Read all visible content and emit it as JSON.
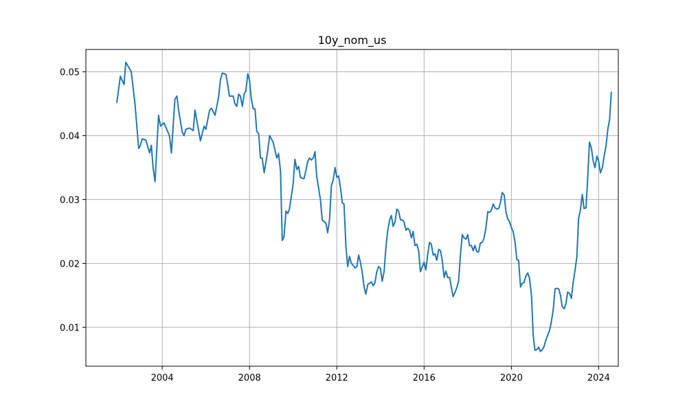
{
  "chart_data": {
    "type": "line",
    "title": "10y_nom_us",
    "xlabel": "",
    "ylabel": "",
    "grid": true,
    "xlim": [
      2000.5,
      2024.9
    ],
    "ylim": [
      0.0039,
      0.0535
    ],
    "x_ticks": [
      2004,
      2008,
      2012,
      2016,
      2020,
      2024
    ],
    "x_tick_labels": [
      "2004",
      "2008",
      "2012",
      "2016",
      "2020",
      "2024"
    ],
    "y_ticks": [
      0.01,
      0.02,
      0.03,
      0.04,
      0.05
    ],
    "y_tick_labels": [
      "0.01",
      "0.02",
      "0.03",
      "0.04",
      "0.05"
    ],
    "series": [
      {
        "color": "#1f77b4",
        "points": [
          [
            2001.92,
            0.0452
          ],
          [
            2002.08,
            0.0493
          ],
          [
            2002.25,
            0.048
          ],
          [
            2002.33,
            0.0515
          ],
          [
            2002.58,
            0.05
          ],
          [
            2002.75,
            0.045
          ],
          [
            2002.92,
            0.038
          ],
          [
            2003.0,
            0.0385
          ],
          [
            2003.08,
            0.0395
          ],
          [
            2003.25,
            0.0393
          ],
          [
            2003.42,
            0.0373
          ],
          [
            2003.5,
            0.0385
          ],
          [
            2003.58,
            0.035
          ],
          [
            2003.67,
            0.0328
          ],
          [
            2003.75,
            0.038
          ],
          [
            2003.83,
            0.0432
          ],
          [
            2003.92,
            0.0415
          ],
          [
            2004.08,
            0.042
          ],
          [
            2004.33,
            0.04
          ],
          [
            2004.42,
            0.0373
          ],
          [
            2004.58,
            0.0457
          ],
          [
            2004.67,
            0.0462
          ],
          [
            2004.75,
            0.044
          ],
          [
            2004.92,
            0.0405
          ],
          [
            2005.0,
            0.04
          ],
          [
            2005.08,
            0.041
          ],
          [
            2005.25,
            0.0412
          ],
          [
            2005.42,
            0.0408
          ],
          [
            2005.5,
            0.044
          ],
          [
            2005.75,
            0.0392
          ],
          [
            2005.92,
            0.0415
          ],
          [
            2006.0,
            0.041
          ],
          [
            2006.17,
            0.044
          ],
          [
            2006.25,
            0.0443
          ],
          [
            2006.42,
            0.0432
          ],
          [
            2006.58,
            0.046
          ],
          [
            2006.67,
            0.0488
          ],
          [
            2006.75,
            0.0498
          ],
          [
            2006.92,
            0.0496
          ],
          [
            2007.0,
            0.048
          ],
          [
            2007.08,
            0.0462
          ],
          [
            2007.25,
            0.0462
          ],
          [
            2007.33,
            0.045
          ],
          [
            2007.42,
            0.0446
          ],
          [
            2007.5,
            0.0465
          ],
          [
            2007.58,
            0.0462
          ],
          [
            2007.67,
            0.0446
          ],
          [
            2007.75,
            0.0465
          ],
          [
            2007.83,
            0.047
          ],
          [
            2007.92,
            0.0497
          ],
          [
            2008.0,
            0.0487
          ],
          [
            2008.08,
            0.0458
          ],
          [
            2008.17,
            0.0442
          ],
          [
            2008.25,
            0.0442
          ],
          [
            2008.33,
            0.0407
          ],
          [
            2008.42,
            0.0403
          ],
          [
            2008.5,
            0.0365
          ],
          [
            2008.58,
            0.0365
          ],
          [
            2008.67,
            0.0342
          ],
          [
            2008.83,
            0.0375
          ],
          [
            2008.92,
            0.04
          ],
          [
            2009.08,
            0.039
          ],
          [
            2009.25,
            0.0365
          ],
          [
            2009.33,
            0.0372
          ],
          [
            2009.42,
            0.0345
          ],
          [
            2009.5,
            0.0236
          ],
          [
            2009.58,
            0.0242
          ],
          [
            2009.67,
            0.0282
          ],
          [
            2009.75,
            0.0278
          ],
          [
            2009.83,
            0.0285
          ],
          [
            2010.0,
            0.0325
          ],
          [
            2010.08,
            0.0363
          ],
          [
            2010.17,
            0.0347
          ],
          [
            2010.25,
            0.0352
          ],
          [
            2010.33,
            0.0335
          ],
          [
            2010.42,
            0.0333
          ],
          [
            2010.5,
            0.0333
          ],
          [
            2010.58,
            0.0345
          ],
          [
            2010.67,
            0.036
          ],
          [
            2010.75,
            0.0365
          ],
          [
            2010.83,
            0.0362
          ],
          [
            2010.92,
            0.0365
          ],
          [
            2011.0,
            0.0375
          ],
          [
            2011.08,
            0.0336
          ],
          [
            2011.17,
            0.0317
          ],
          [
            2011.25,
            0.03
          ],
          [
            2011.33,
            0.0268
          ],
          [
            2011.5,
            0.0263
          ],
          [
            2011.58,
            0.0248
          ],
          [
            2011.67,
            0.027
          ],
          [
            2011.75,
            0.0322
          ],
          [
            2011.83,
            0.033
          ],
          [
            2011.92,
            0.035
          ],
          [
            2012.0,
            0.0335
          ],
          [
            2012.08,
            0.0337
          ],
          [
            2012.17,
            0.0318
          ],
          [
            2012.25,
            0.0295
          ],
          [
            2012.33,
            0.0293
          ],
          [
            2012.42,
            0.0225
          ],
          [
            2012.5,
            0.0195
          ],
          [
            2012.58,
            0.0211
          ],
          [
            2012.67,
            0.02
          ],
          [
            2012.75,
            0.0197
          ],
          [
            2012.83,
            0.0193
          ],
          [
            2012.92,
            0.0195
          ],
          [
            2013.0,
            0.0213
          ],
          [
            2013.08,
            0.0202
          ],
          [
            2013.17,
            0.0185
          ],
          [
            2013.25,
            0.0163
          ],
          [
            2013.33,
            0.0152
          ],
          [
            2013.42,
            0.0167
          ],
          [
            2013.58,
            0.0171
          ],
          [
            2013.67,
            0.0165
          ],
          [
            2013.75,
            0.017
          ],
          [
            2013.83,
            0.0187
          ],
          [
            2013.92,
            0.0195
          ],
          [
            2014.0,
            0.0192
          ],
          [
            2014.08,
            0.0172
          ],
          [
            2014.17,
            0.0188
          ],
          [
            2014.25,
            0.0225
          ],
          [
            2014.33,
            0.0251
          ],
          [
            2014.42,
            0.0268
          ],
          [
            2014.5,
            0.0275
          ],
          [
            2014.58,
            0.0258
          ],
          [
            2014.67,
            0.0265
          ],
          [
            2014.75,
            0.0285
          ],
          [
            2014.83,
            0.0282
          ],
          [
            2014.92,
            0.0268
          ],
          [
            2015.0,
            0.0268
          ],
          [
            2015.08,
            0.0265
          ],
          [
            2015.17,
            0.0252
          ],
          [
            2015.25,
            0.0255
          ],
          [
            2015.33,
            0.0252
          ],
          [
            2015.42,
            0.024
          ],
          [
            2015.5,
            0.025
          ],
          [
            2015.58,
            0.0228
          ],
          [
            2015.67,
            0.023
          ],
          [
            2015.75,
            0.022
          ],
          [
            2015.83,
            0.0187
          ],
          [
            2015.92,
            0.0195
          ],
          [
            2016.0,
            0.0202
          ],
          [
            2016.08,
            0.019
          ],
          [
            2016.17,
            0.0215
          ],
          [
            2016.25,
            0.0233
          ],
          [
            2016.33,
            0.023
          ],
          [
            2016.42,
            0.0213
          ],
          [
            2016.5,
            0.0215
          ],
          [
            2016.58,
            0.0205
          ],
          [
            2016.67,
            0.0222
          ],
          [
            2016.75,
            0.022
          ],
          [
            2016.83,
            0.0205
          ],
          [
            2016.92,
            0.0178
          ],
          [
            2017.0,
            0.0188
          ],
          [
            2017.08,
            0.0178
          ],
          [
            2017.17,
            0.0178
          ],
          [
            2017.25,
            0.0162
          ],
          [
            2017.33,
            0.0148
          ],
          [
            2017.42,
            0.0155
          ],
          [
            2017.5,
            0.0162
          ],
          [
            2017.58,
            0.0172
          ],
          [
            2017.67,
            0.0215
          ],
          [
            2017.75,
            0.0245
          ],
          [
            2017.83,
            0.024
          ],
          [
            2017.92,
            0.0238
          ],
          [
            2018.0,
            0.0245
          ],
          [
            2018.08,
            0.0228
          ],
          [
            2018.17,
            0.0228
          ],
          [
            2018.25,
            0.022
          ],
          [
            2018.33,
            0.0228
          ],
          [
            2018.42,
            0.0218
          ],
          [
            2018.5,
            0.0218
          ],
          [
            2018.58,
            0.0232
          ],
          [
            2018.67,
            0.0233
          ],
          [
            2018.75,
            0.024
          ],
          [
            2018.83,
            0.0255
          ],
          [
            2018.92,
            0.0281
          ],
          [
            2019.0,
            0.028
          ],
          [
            2019.08,
            0.0283
          ],
          [
            2019.17,
            0.0293
          ],
          [
            2019.25,
            0.0287
          ],
          [
            2019.33,
            0.0285
          ],
          [
            2019.42,
            0.0286
          ],
          [
            2019.5,
            0.0295
          ],
          [
            2019.58,
            0.0311
          ],
          [
            2019.67,
            0.0307
          ],
          [
            2019.75,
            0.0281
          ],
          [
            2019.83,
            0.027
          ],
          [
            2019.92,
            0.0265
          ],
          [
            2020.0,
            0.0256
          ],
          [
            2020.08,
            0.025
          ],
          [
            2020.17,
            0.0233
          ],
          [
            2020.25,
            0.0206
          ],
          [
            2020.33,
            0.0205
          ],
          [
            2020.42,
            0.0163
          ],
          [
            2020.5,
            0.0169
          ],
          [
            2020.58,
            0.017
          ],
          [
            2020.67,
            0.0181
          ],
          [
            2020.75,
            0.0185
          ],
          [
            2020.83,
            0.0177
          ],
          [
            2020.92,
            0.015
          ],
          [
            2021.0,
            0.0088
          ],
          [
            2021.08,
            0.0064
          ],
          [
            2021.17,
            0.0065
          ],
          [
            2021.25,
            0.0069
          ],
          [
            2021.33,
            0.0062
          ],
          [
            2021.42,
            0.0065
          ],
          [
            2021.5,
            0.007
          ],
          [
            2021.58,
            0.008
          ],
          [
            2021.67,
            0.0088
          ],
          [
            2021.75,
            0.0095
          ],
          [
            2021.83,
            0.0108
          ],
          [
            2021.92,
            0.0128
          ],
          [
            2022.0,
            0.016
          ],
          [
            2022.08,
            0.0161
          ],
          [
            2022.17,
            0.016
          ],
          [
            2022.25,
            0.015
          ],
          [
            2022.33,
            0.0132
          ],
          [
            2022.42,
            0.0129
          ],
          [
            2022.5,
            0.0137
          ],
          [
            2022.58,
            0.0155
          ],
          [
            2022.67,
            0.0153
          ],
          [
            2022.75,
            0.0145
          ],
          [
            2022.83,
            0.017
          ],
          [
            2022.92,
            0.019
          ],
          [
            2023.0,
            0.021
          ],
          [
            2023.08,
            0.027
          ],
          [
            2023.17,
            0.0285
          ],
          [
            2023.25,
            0.0308
          ],
          [
            2023.33,
            0.0286
          ],
          [
            2023.42,
            0.0287
          ],
          [
            2023.5,
            0.0335
          ],
          [
            2023.58,
            0.039
          ],
          [
            2023.67,
            0.038
          ],
          [
            2023.75,
            0.036
          ],
          [
            2023.83,
            0.035
          ],
          [
            2023.92,
            0.0368
          ],
          [
            2024.0,
            0.036
          ],
          [
            2024.08,
            0.0342
          ],
          [
            2024.17,
            0.035
          ],
          [
            2024.25,
            0.0368
          ],
          [
            2024.33,
            0.0382
          ],
          [
            2024.42,
            0.041
          ],
          [
            2024.5,
            0.0425
          ],
          [
            2024.58,
            0.0468
          ]
        ]
      }
    ]
  }
}
